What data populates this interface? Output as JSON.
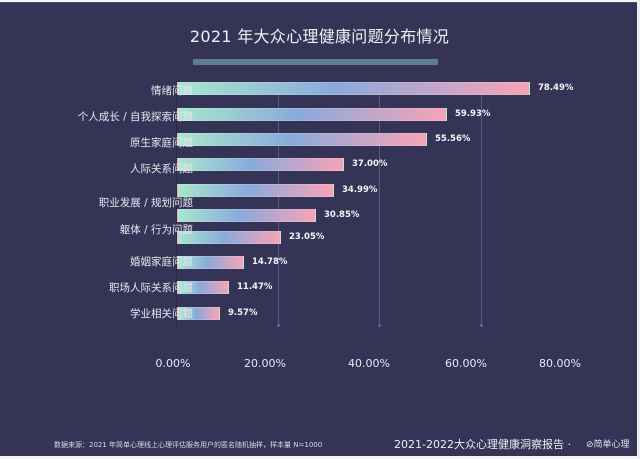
{
  "chart_data": {
    "type": "bar",
    "orientation": "horizontal",
    "title": "2021 年大众心理健康问题分布情况",
    "xlabel": "",
    "ylabel": "",
    "categories": [
      "情绪问题",
      "个人成长 / 自我探索问题",
      "原生家庭问题",
      "人际关系问题",
      "(unlabeled)",
      "职业发展 / 规划问题",
      "躯体 / 行为问题",
      "婚姻家庭问题",
      "职场人际关系问题",
      "学业相关问题"
    ],
    "visible_category_labels": [
      "情绪问题",
      "个人成长 / 自我探索问题",
      "原生家庭问题",
      "人际关系问题",
      "职业发展 / 规划问题",
      "躯体 / 行为问题",
      "婚姻家庭问题",
      "职场人际关系问题",
      "学业相关问题"
    ],
    "values": [
      78.49,
      59.93,
      55.56,
      37.0,
      34.99,
      30.85,
      23.05,
      14.78,
      11.47,
      9.57
    ],
    "value_labels": [
      "78.49%",
      "59.93%",
      "55.56%",
      "37.00%",
      "34.99%",
      "30.85%",
      "23.05%",
      "14.78%",
      "11.47%",
      "9.57%"
    ],
    "x_ticks": [
      "0.00%",
      "20.00%",
      "40.00%",
      "60.00%",
      "80.00%"
    ],
    "xlim": [
      0,
      80
    ],
    "grid": "vertical",
    "legend": "none",
    "bar_gradient": [
      "#a8e6cc",
      "#8aaadc",
      "#f7a3b7"
    ]
  },
  "colors": {
    "background": "#353456",
    "title_underline": "#5e7d8e",
    "text": "#eceef6"
  },
  "footer": {
    "source": "数据来源：2021 年简单心理线上心理评估服务用户的匿名随机抽样，样本量 N=1000",
    "report_title": "2021-2022大众心理健康洞察报告 ·",
    "brand": "⊘简单心理"
  }
}
